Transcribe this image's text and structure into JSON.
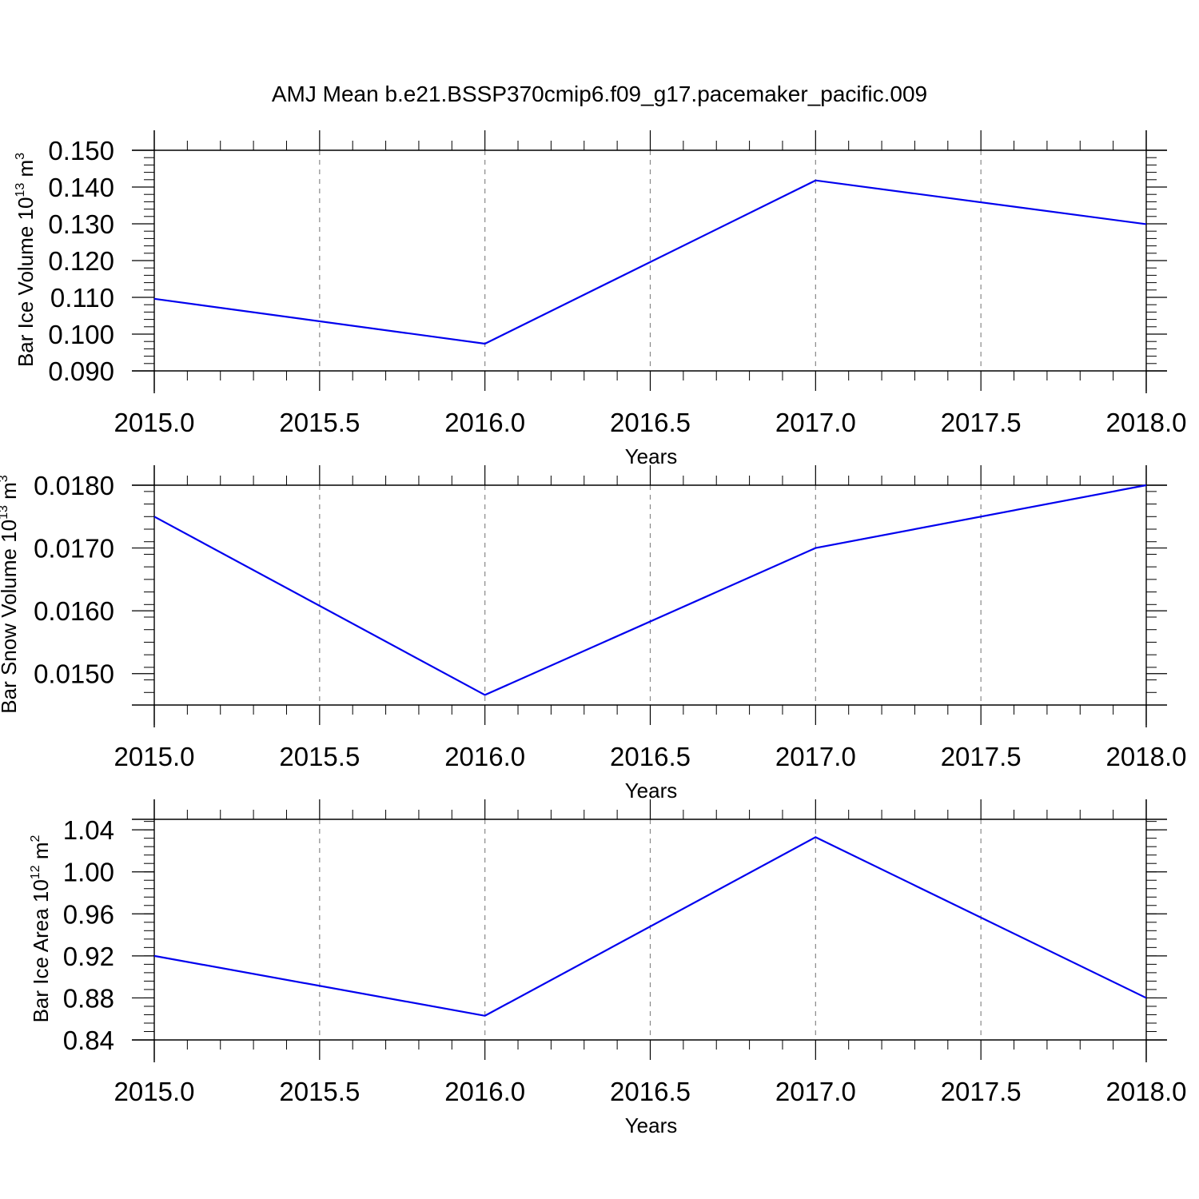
{
  "figure": {
    "title": "AMJ Mean b.e21.BSSP370cmip6.f09_g17.pacemaker_pacific.009"
  },
  "colors": {
    "series": "#0000ee",
    "axis": "#000000",
    "grid": "#888888",
    "background": "#ffffff"
  },
  "chart_data": [
    {
      "type": "line",
      "title": "",
      "xlabel": "Years",
      "ylabel": {
        "base": "Bar Ice Volume 10",
        "exp": "13",
        "unit": " m",
        "unit_exp": "3"
      },
      "xlim": [
        2015.0,
        2018.0
      ],
      "ylim": [
        0.09,
        0.15
      ],
      "xticks": [
        "2015.0",
        "2015.5",
        "2016.0",
        "2016.5",
        "2017.0",
        "2017.5",
        "2018.0"
      ],
      "yticks": [
        "0.090",
        "0.100",
        "0.110",
        "0.120",
        "0.130",
        "0.140",
        "0.150"
      ],
      "x_grid": true,
      "series": [
        {
          "x": [
            2015,
            2016,
            2017,
            2018
          ],
          "y": [
            0.1096,
            0.0974,
            0.1418,
            0.1299
          ]
        }
      ]
    },
    {
      "type": "line",
      "title": "",
      "xlabel": "Years",
      "ylabel": {
        "base": "Bar Snow Volume 10",
        "exp": "13",
        "unit": " m",
        "unit_exp": "3"
      },
      "xlim": [
        2015.0,
        2018.0
      ],
      "ylim": [
        0.0145,
        0.018
      ],
      "xticks": [
        "2015.0",
        "2015.5",
        "2016.0",
        "2016.5",
        "2017.0",
        "2017.5",
        "2018.0"
      ],
      "yticks": [
        "0.0150",
        "0.0160",
        "0.0170",
        "0.0180"
      ],
      "x_grid": true,
      "series": [
        {
          "x": [
            2015,
            2016,
            2017,
            2018
          ],
          "y": [
            0.0175,
            0.01466,
            0.017,
            0.018
          ]
        }
      ]
    },
    {
      "type": "line",
      "title": "",
      "xlabel": "Years",
      "ylabel": {
        "base": "Bar Ice Area 10",
        "exp": "12",
        "unit": " m",
        "unit_exp": "2"
      },
      "xlim": [
        2015.0,
        2018.0
      ],
      "ylim": [
        0.84,
        1.05
      ],
      "xticks": [
        "2015.0",
        "2015.5",
        "2016.0",
        "2016.5",
        "2017.0",
        "2017.5",
        "2018.0"
      ],
      "yticks": [
        "0.84",
        "0.88",
        "0.92",
        "0.96",
        "1.00",
        "1.04"
      ],
      "x_grid": true,
      "series": [
        {
          "x": [
            2015,
            2016,
            2017,
            2018
          ],
          "y": [
            0.92,
            0.863,
            1.033,
            0.88
          ]
        }
      ]
    }
  ]
}
